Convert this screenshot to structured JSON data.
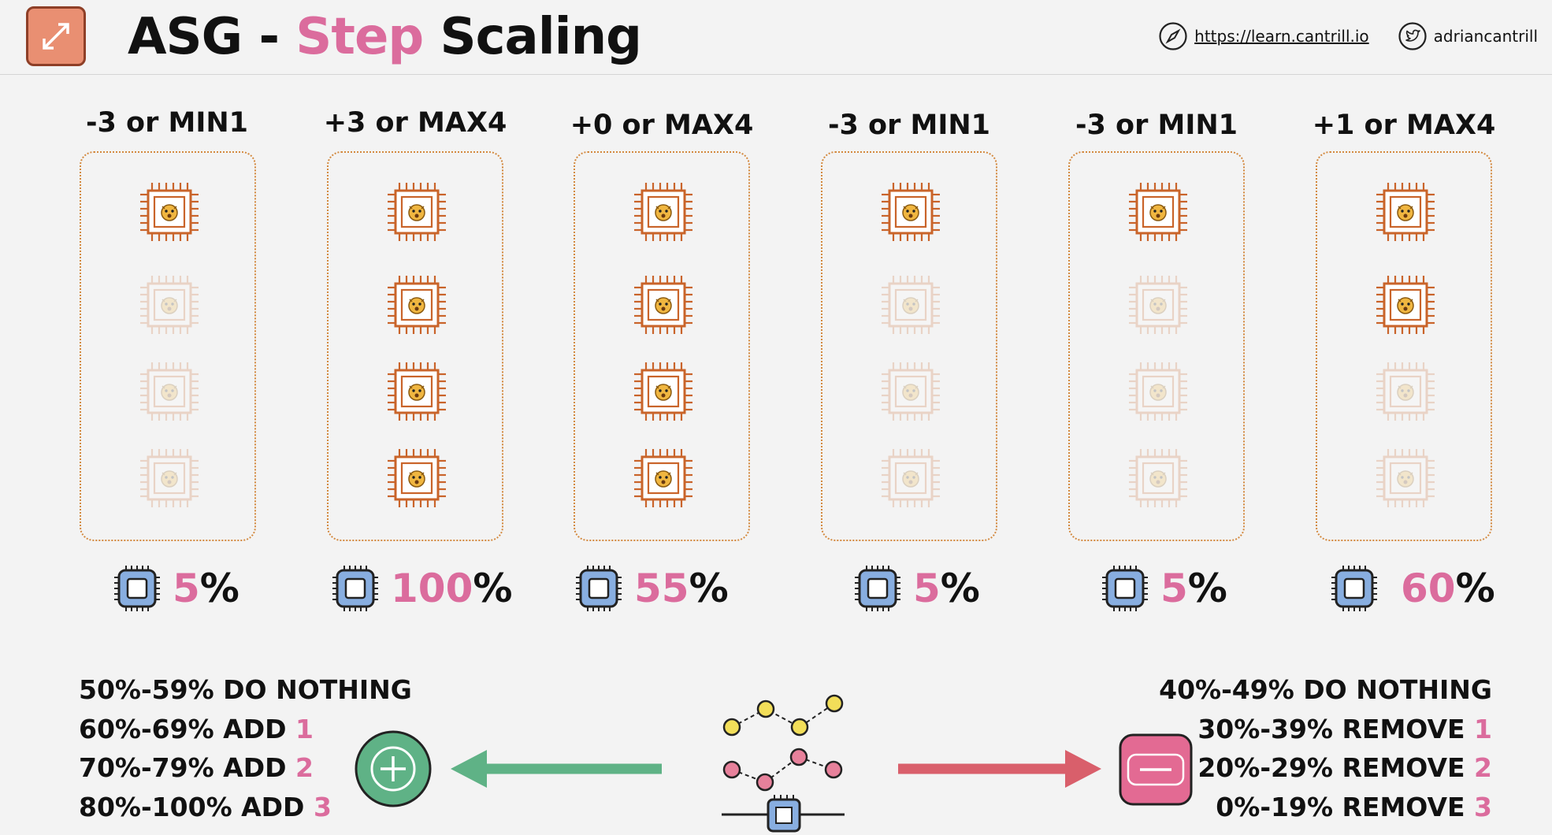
{
  "header": {
    "title_prefix": "ASG - ",
    "title_highlight": "Step",
    "title_suffix": " Scaling",
    "link_url": "https://learn.cantrill.io",
    "twitter_handle": "adriancantrill",
    "icons": [
      "resize-arrows-icon",
      "compass-icon",
      "twitter-bird-icon"
    ]
  },
  "columns": [
    {
      "label": "-3 or MIN1",
      "active_instances": 1,
      "cpu_value": "5",
      "cpu_unit": "%"
    },
    {
      "label": "+3 or MAX4",
      "active_instances": 4,
      "cpu_value": "100",
      "cpu_unit": "%"
    },
    {
      "label": "+0 or MAX4",
      "active_instances": 4,
      "cpu_value": "55",
      "cpu_unit": "%"
    },
    {
      "label": "-3 or MIN1",
      "active_instances": 1,
      "cpu_value": "5",
      "cpu_unit": "%"
    },
    {
      "label": "-3 or MIN1",
      "active_instances": 1,
      "cpu_value": "5",
      "cpu_unit": "%"
    },
    {
      "label": "+1 or MAX4",
      "active_instances": 2,
      "cpu_value": "60",
      "cpu_unit": "%"
    }
  ],
  "scale_out_rules": [
    {
      "text": "50%-59% DO NOTHING",
      "num": ""
    },
    {
      "text": "60%-69% ADD ",
      "num": "1"
    },
    {
      "text": "70%-79% ADD ",
      "num": "2"
    },
    {
      "text": "80%-100% ADD ",
      "num": "3"
    }
  ],
  "scale_in_rules": [
    {
      "text": "40%-49% DO NOTHING",
      "num": ""
    },
    {
      "text": "30%-39% REMOVE ",
      "num": "1"
    },
    {
      "text": "20%-29% REMOVE ",
      "num": "2"
    },
    {
      "text": "0%-19% REMOVE ",
      "num": "3"
    }
  ],
  "colors": {
    "accent_pink": "#db6c9d",
    "instance_orange": "#c9642a",
    "add_green": "#5fb286",
    "remove_red": "#d95f6b",
    "cpu_blue": "#88aee0"
  }
}
